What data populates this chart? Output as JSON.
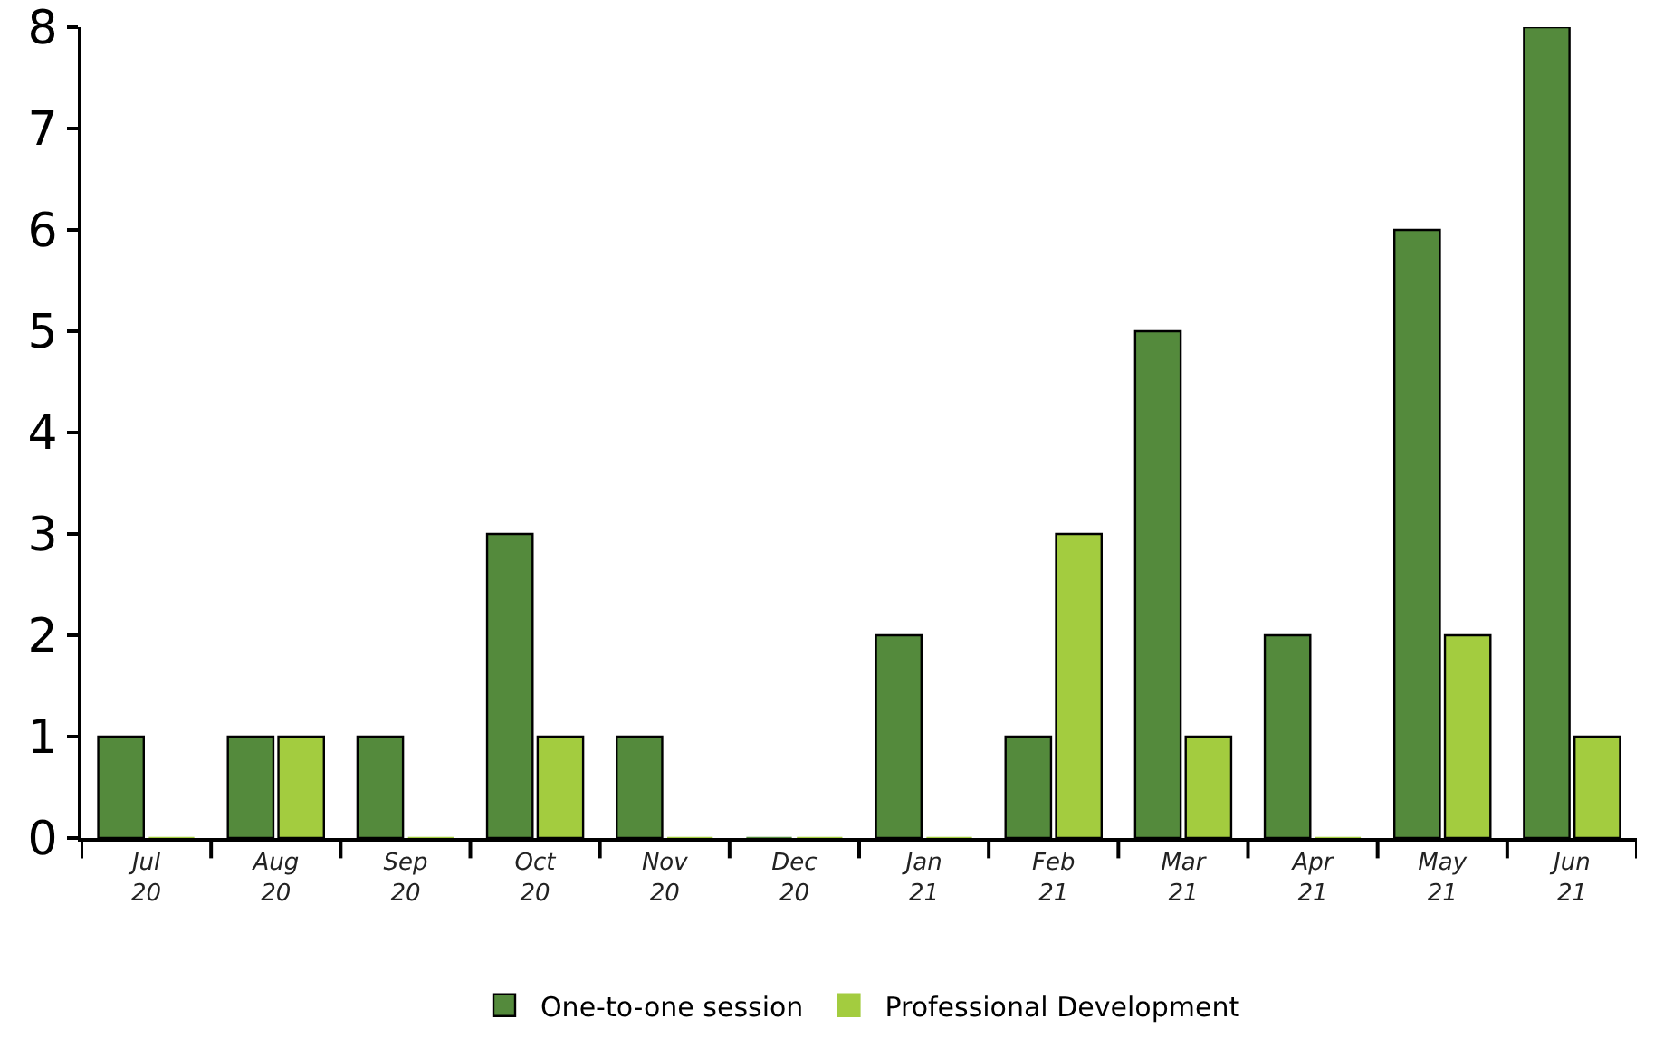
{
  "chart_data": {
    "type": "bar",
    "categories": [
      "Jul 20",
      "Aug 20",
      "Sep 20",
      "Oct 20",
      "Nov 20",
      "Dec 20",
      "Jan 21",
      "Feb 21",
      "Mar 21",
      "Apr 21",
      "May 21",
      "Jun 21"
    ],
    "series": [
      {
        "name": "One-to-one session",
        "color": "#548a3c",
        "values": [
          1,
          1,
          1,
          3,
          1,
          0,
          2,
          1,
          5,
          2,
          6,
          8
        ]
      },
      {
        "name": "Professional Development",
        "color": "#a3cc3f",
        "values": [
          0,
          1,
          0,
          1,
          0,
          0,
          0,
          3,
          1,
          0,
          2,
          1
        ]
      }
    ],
    "ylim": [
      0,
      8
    ],
    "yticks": [
      0,
      1,
      2,
      3,
      4,
      5,
      6,
      7,
      8
    ],
    "grid": false,
    "legend": "bottom"
  }
}
